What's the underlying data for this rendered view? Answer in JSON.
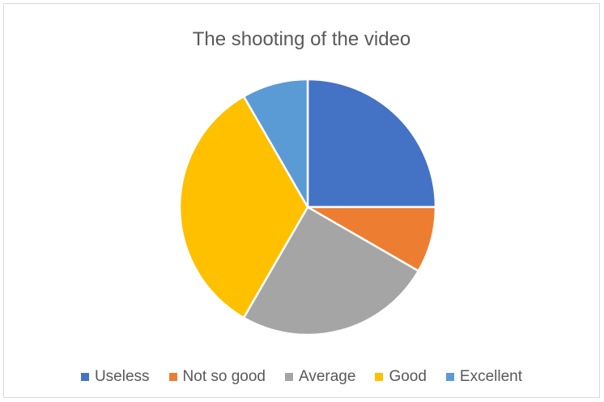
{
  "chart_data": {
    "type": "pie",
    "title": "The shooting of the video",
    "categories": [
      "Useless",
      "Not so good",
      "Average",
      "Good",
      "Excellent"
    ],
    "values": [
      25,
      8.33,
      25,
      33.33,
      8.33
    ],
    "colors": [
      "#4472C4",
      "#ED7D31",
      "#A5A5A5",
      "#FFC000",
      "#5B9BD5"
    ],
    "legend_position": "bottom",
    "start_angle": "12 o'clock",
    "direction": "clockwise"
  }
}
